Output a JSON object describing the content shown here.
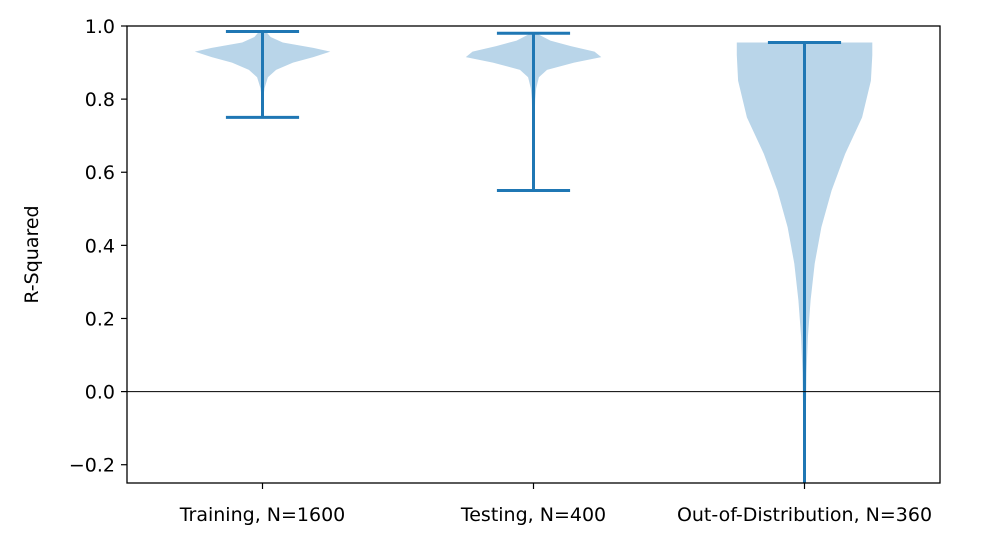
{
  "chart_data": {
    "type": "violin",
    "title": "",
    "xlabel": "",
    "ylabel": "R-Squared",
    "ylim": [
      -0.25,
      1.0
    ],
    "yticks": [
      -0.2,
      0.0,
      0.2,
      0.4,
      0.6,
      0.8,
      1.0
    ],
    "ytick_labels": [
      "−0.2",
      "0.0",
      "0.2",
      "0.4",
      "0.6",
      "0.8",
      "1.0"
    ],
    "reference_line": 0.0,
    "grid": false,
    "violin_color": "#b9d5e9",
    "whisker_color": "#1f77b4",
    "categories": [
      "Training, N=1600",
      "Testing, N=400",
      "Out-of-Distribution, N=360"
    ],
    "series": [
      {
        "min": 0.75,
        "max": 0.985,
        "density_profile": [
          [
            0.985,
            0.05
          ],
          [
            0.97,
            0.12
          ],
          [
            0.955,
            0.3
          ],
          [
            0.94,
            0.75
          ],
          [
            0.93,
            1.0
          ],
          [
            0.915,
            0.75
          ],
          [
            0.9,
            0.45
          ],
          [
            0.88,
            0.2
          ],
          [
            0.86,
            0.08
          ],
          [
            0.83,
            0.03
          ],
          [
            0.8,
            0.01
          ],
          [
            0.75,
            0.0
          ]
        ]
      },
      {
        "min": 0.55,
        "max": 0.98,
        "density_profile": [
          [
            0.98,
            0.04
          ],
          [
            0.96,
            0.25
          ],
          [
            0.945,
            0.55
          ],
          [
            0.93,
            0.9
          ],
          [
            0.915,
            1.0
          ],
          [
            0.9,
            0.6
          ],
          [
            0.88,
            0.2
          ],
          [
            0.86,
            0.08
          ],
          [
            0.83,
            0.04
          ],
          [
            0.8,
            0.025
          ],
          [
            0.7,
            0.01
          ],
          [
            0.55,
            0.0
          ]
        ]
      },
      {
        "min": -0.25,
        "max": 0.955,
        "density_profile": [
          [
            0.955,
            1.0
          ],
          [
            0.92,
            1.0
          ],
          [
            0.85,
            0.98
          ],
          [
            0.75,
            0.85
          ],
          [
            0.65,
            0.6
          ],
          [
            0.55,
            0.4
          ],
          [
            0.45,
            0.25
          ],
          [
            0.35,
            0.15
          ],
          [
            0.25,
            0.09
          ],
          [
            0.15,
            0.05
          ],
          [
            0.05,
            0.03
          ],
          [
            -0.05,
            0.02
          ],
          [
            -0.15,
            0.012
          ],
          [
            -0.25,
            0.008
          ]
        ]
      }
    ]
  }
}
